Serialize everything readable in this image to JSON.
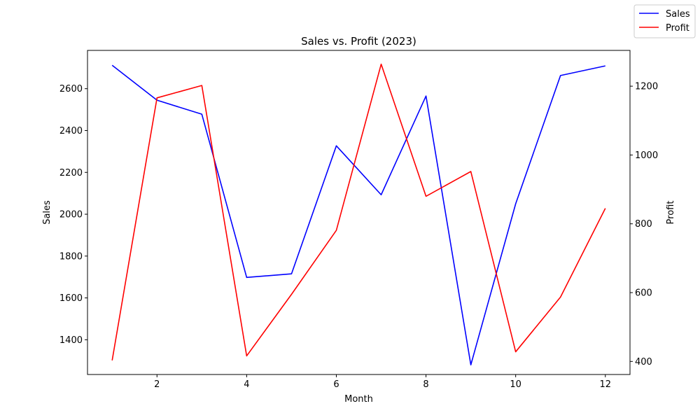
{
  "chart_data": {
    "type": "line",
    "title": "Sales vs. Profit (2023)",
    "xlabel": "Month",
    "ylabel_left": "Sales",
    "ylabel_right": "Profit",
    "x": [
      1,
      2,
      3,
      4,
      5,
      6,
      7,
      8,
      9,
      10,
      11,
      12
    ],
    "xlim": [
      0.45,
      12.55
    ],
    "xticks": [
      2,
      4,
      6,
      8,
      10,
      12
    ],
    "series": [
      {
        "name": "Sales",
        "axis": "left",
        "color": "#0000ff",
        "values": [
          2712,
          2545,
          2478,
          1698,
          1715,
          2327,
          2093,
          2565,
          1280,
          2050,
          2663,
          2709
        ]
      },
      {
        "name": "Profit",
        "axis": "right",
        "color": "#ff0000",
        "values": [
          403,
          1166,
          1202,
          416,
          595,
          781,
          1264,
          880,
          952,
          428,
          587,
          845
        ]
      }
    ],
    "ylim_left": [
      1234,
      2783
    ],
    "yticks_left": [
      1400,
      1600,
      1800,
      2000,
      2200,
      2400,
      2600
    ],
    "ylim_right": [
      362,
      1304
    ],
    "yticks_right": [
      400,
      600,
      800,
      1000,
      1200
    ],
    "grid": false,
    "legend": {
      "placement": "top-right",
      "entries": [
        "Sales",
        "Profit"
      ]
    }
  }
}
